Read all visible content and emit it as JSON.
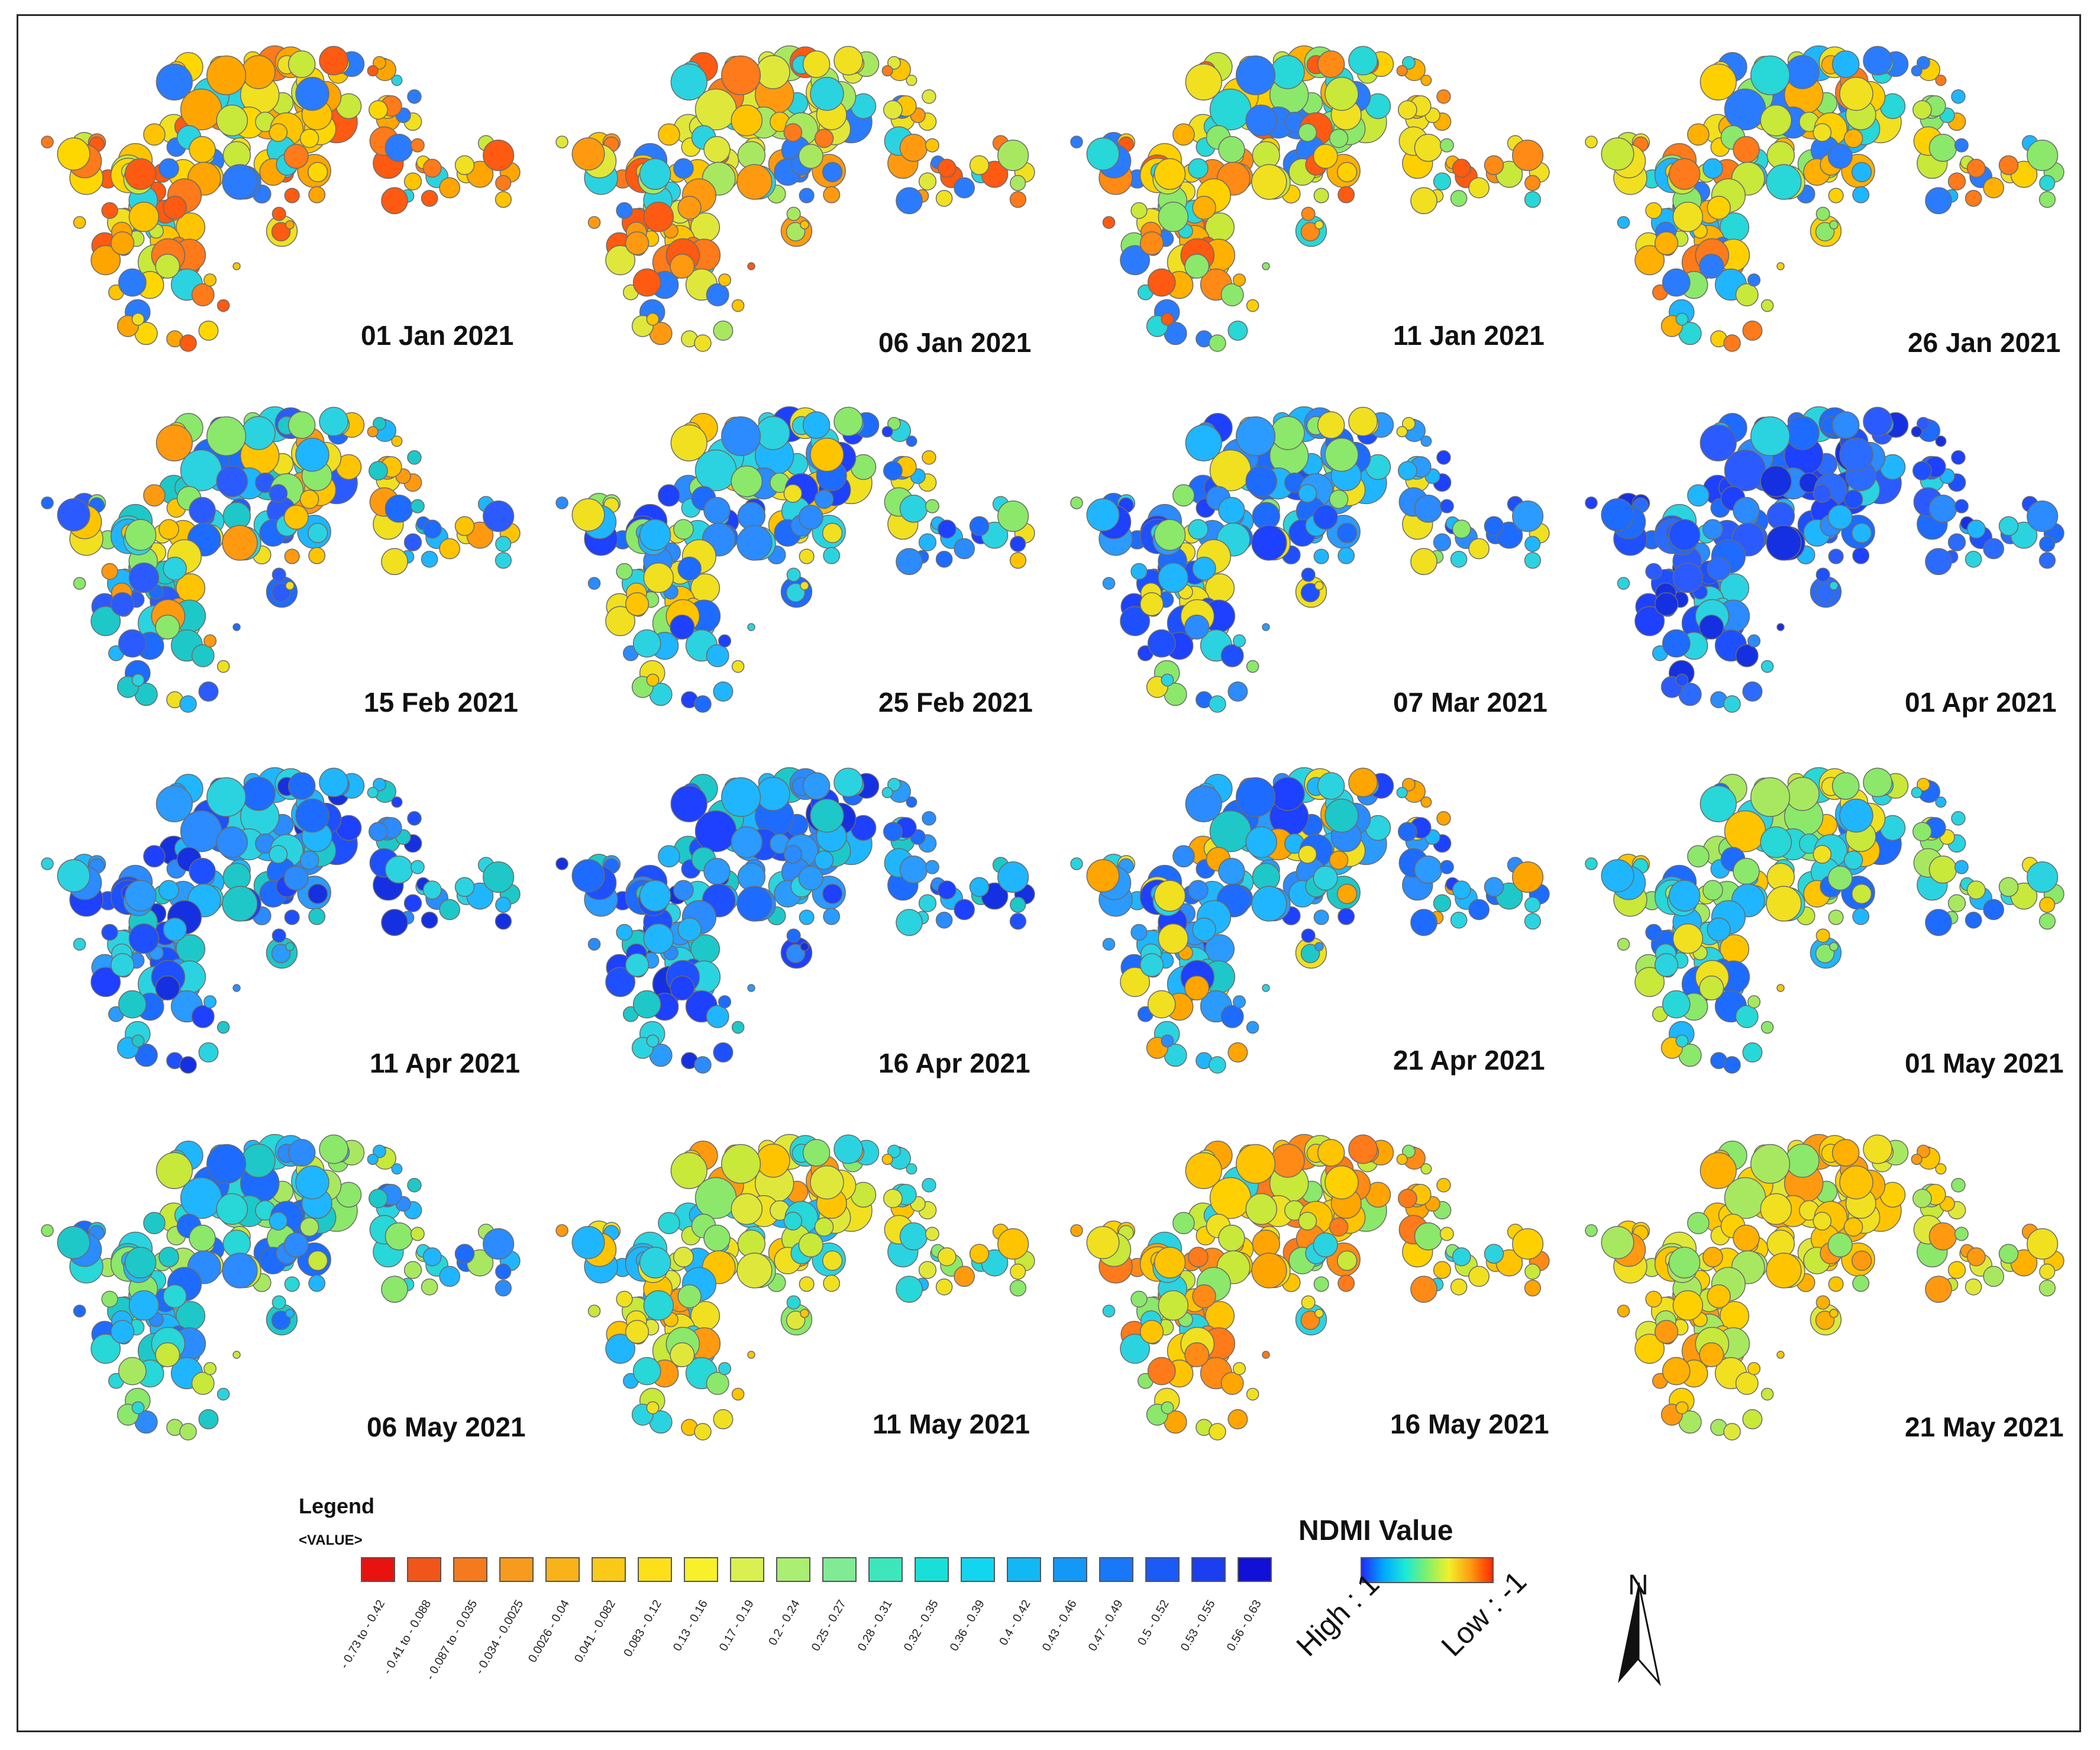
{
  "panels": [
    {
      "date": "01 Jan 2021",
      "palette": [
        "#ff7a1a",
        "#ff5a12",
        "#ffa500",
        "#ffc400",
        "#ffd700",
        "#f0e020",
        "#c8e83a",
        "#2bd3e0",
        "#2b7bff"
      ]
    },
    {
      "date": "06 Jan 2021",
      "palette": [
        "#ff7a1a",
        "#ff9a10",
        "#ffc400",
        "#f0e020",
        "#dfe83a",
        "#a8e860",
        "#2bd3e0",
        "#2b7bff",
        "#ff5a12"
      ]
    },
    {
      "date": "11 Jan 2021",
      "palette": [
        "#ff8a15",
        "#ffb000",
        "#ffd000",
        "#f0e020",
        "#c8e83a",
        "#8be86a",
        "#28d7d7",
        "#2b7bff",
        "#ff5a12"
      ]
    },
    {
      "date": "26 Jan 2021",
      "palette": [
        "#ffb000",
        "#ffd000",
        "#f0e020",
        "#c8e83a",
        "#8be86a",
        "#28d7d7",
        "#1fb6ff",
        "#ff7a1a",
        "#2b7bff"
      ]
    },
    {
      "date": "15 Feb 2021",
      "palette": [
        "#1fb6ff",
        "#2bd3e0",
        "#1ec8c8",
        "#8be86a",
        "#f0e020",
        "#ffc400",
        "#1e6bff",
        "#ff9a10",
        "#2b5bff"
      ]
    },
    {
      "date": "25 Feb 2021",
      "palette": [
        "#1fb6ff",
        "#2b8bff",
        "#1e6bff",
        "#2bd3e0",
        "#8be86a",
        "#f0e020",
        "#1e40ff",
        "#ffc400",
        "#2bd3e0"
      ]
    },
    {
      "date": "07 Mar 2021",
      "palette": [
        "#1e6bff",
        "#2b8bff",
        "#1fb6ff",
        "#1e40ff",
        "#2bd3e0",
        "#8be86a",
        "#f0e020",
        "#1e50ff",
        "#2b9bff"
      ]
    },
    {
      "date": "01 Apr 2021",
      "palette": [
        "#1e40ff",
        "#1e50ff",
        "#2b6bff",
        "#2b8bff",
        "#1fb6ff",
        "#1530e0",
        "#2bd3e0",
        "#1e6bff",
        "#2b5bff"
      ]
    },
    {
      "date": "11 Apr 2021",
      "palette": [
        "#1e6bff",
        "#2b8bff",
        "#1fb6ff",
        "#1e40ff",
        "#2bd3e0",
        "#1e50ff",
        "#2b9bff",
        "#1ec8c8",
        "#1530e0"
      ]
    },
    {
      "date": "16 Apr 2021",
      "palette": [
        "#1e6bff",
        "#2b8bff",
        "#1fb6ff",
        "#1e40ff",
        "#2bd3e0",
        "#1e50ff",
        "#2b9bff",
        "#1ec8c8",
        "#1530e0"
      ]
    },
    {
      "date": "21 Apr 2021",
      "palette": [
        "#1e6bff",
        "#2b8bff",
        "#1fb6ff",
        "#2bd3e0",
        "#1e40ff",
        "#1ec8c8",
        "#ffa500",
        "#f0e020",
        "#2b9bff"
      ]
    },
    {
      "date": "01 May 2021",
      "palette": [
        "#8be86a",
        "#c8e83a",
        "#2bd3e0",
        "#1fb6ff",
        "#f0e020",
        "#1e6bff",
        "#a8e860",
        "#28d7d7",
        "#ffc400"
      ]
    },
    {
      "date": "06 May 2021",
      "palette": [
        "#2bd3e0",
        "#1fb6ff",
        "#8be86a",
        "#28d7d7",
        "#1e6bff",
        "#c8e83a",
        "#2b8bff",
        "#a8e860",
        "#1ec8c8"
      ]
    },
    {
      "date": "11 May 2021",
      "palette": [
        "#f0e020",
        "#ffc400",
        "#c8e83a",
        "#8be86a",
        "#2bd3e0",
        "#1fb6ff",
        "#ff9a10",
        "#28d7d7",
        "#dfe83a"
      ]
    },
    {
      "date": "16 May 2021",
      "palette": [
        "#ffc400",
        "#ffa500",
        "#f0e020",
        "#ff8a15",
        "#c8e83a",
        "#ffd000",
        "#8be86a",
        "#ff7a1a",
        "#2bd3e0"
      ]
    },
    {
      "date": "21 May 2021",
      "palette": [
        "#f0e020",
        "#ffd000",
        "#c8e83a",
        "#ffc400",
        "#dfe83a",
        "#8be86a",
        "#ffb000",
        "#a8e860",
        "#ff9a10"
      ]
    }
  ],
  "legend": {
    "title": "Legend",
    "subtitle": "<VALUE>",
    "classes": [
      {
        "label": "- 0.73 to - 0.42",
        "color": "#e8130e"
      },
      {
        "label": "- 0.41 to - 0.088",
        "color": "#f0561a"
      },
      {
        "label": "- 0.087 to - 0.035",
        "color": "#f57a1e"
      },
      {
        "label": "- 0.034 - 0.0025",
        "color": "#f79b1e"
      },
      {
        "label": "0.0026 - 0.04",
        "color": "#f9b21a"
      },
      {
        "label": "0.041 - 0.082",
        "color": "#fbca18"
      },
      {
        "label": "0.083 - 0.12",
        "color": "#fde01a"
      },
      {
        "label": "0.13 - 0.16",
        "color": "#f7f02a"
      },
      {
        "label": "0.17 - 0.19",
        "color": "#d9f050"
      },
      {
        "label": "0.2 - 0.24",
        "color": "#aaee72"
      },
      {
        "label": "0.25 - 0.27",
        "color": "#80eb94"
      },
      {
        "label": "0.28 - 0.31",
        "color": "#3ee6bb"
      },
      {
        "label": "0.32 - 0.35",
        "color": "#18e0d8"
      },
      {
        "label": "0.36 - 0.39",
        "color": "#12d6f0"
      },
      {
        "label": "0.4 - 0.42",
        "color": "#12b8f4"
      },
      {
        "label": "0.43 - 0.46",
        "color": "#1498f7"
      },
      {
        "label": "0.47 - 0.49",
        "color": "#1878f8"
      },
      {
        "label": "0.5 - 0.52",
        "color": "#1a5af7"
      },
      {
        "label": "0.53 - 0.55",
        "color": "#1a3ef0"
      },
      {
        "label": "0.56 - 0.63",
        "color": "#1010d8"
      }
    ]
  },
  "ndmi": {
    "title": "NDMI Value",
    "high_label": "High : 1",
    "low_label": "Low : -1"
  },
  "north_arrow": {
    "label": "N"
  }
}
